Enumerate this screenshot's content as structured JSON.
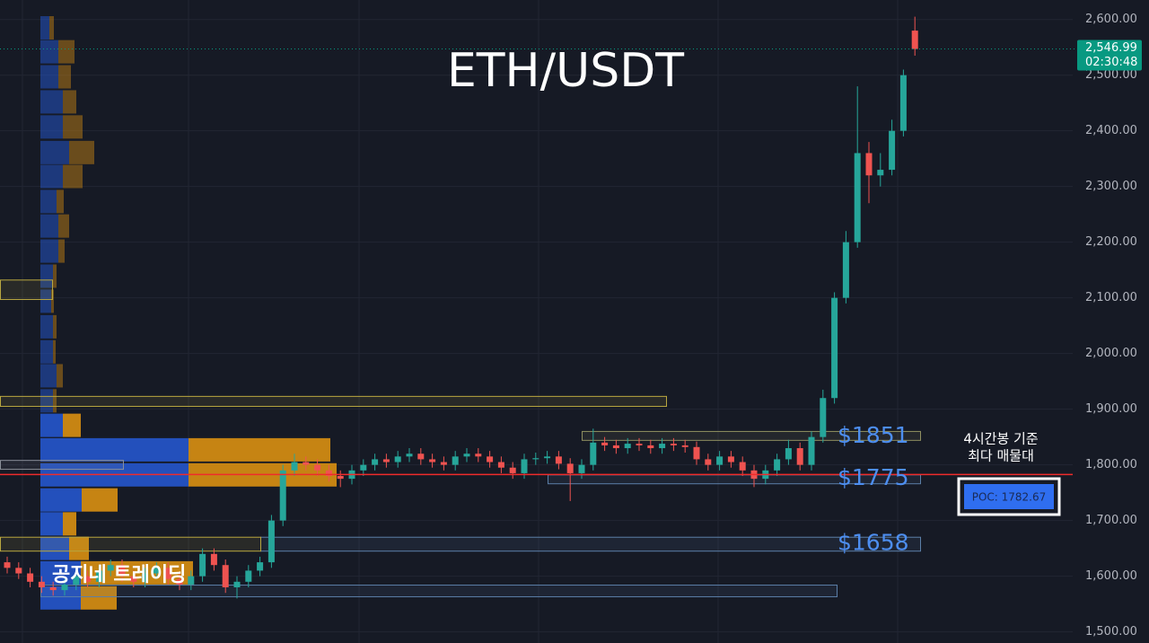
{
  "chart_data": {
    "type": "candlestick",
    "title": "ETH/USDT",
    "watermark": "공지네 트레이딩",
    "up_color": "#26a69a",
    "down_color": "#ef5350",
    "grid": true,
    "ylim": [
      1480,
      2635
    ],
    "yticks": [
      {
        "value": 1500,
        "label": "1,500.00"
      },
      {
        "value": 1600,
        "label": "1,600.00"
      },
      {
        "value": 1700,
        "label": "1,700.00"
      },
      {
        "value": 1800,
        "label": "1,800.00"
      },
      {
        "value": 1900,
        "label": "1,900.00"
      },
      {
        "value": 2000,
        "label": "2,000.00"
      },
      {
        "value": 2100,
        "label": "2,100.00"
      },
      {
        "value": 2200,
        "label": "2,200.00"
      },
      {
        "value": 2300,
        "label": "2,300.00"
      },
      {
        "value": 2400,
        "label": "2,400.00"
      },
      {
        "value": 2500,
        "label": "2,500.00"
      },
      {
        "value": 2600,
        "label": "2,600.00"
      }
    ],
    "open": [
      1625,
      1615,
      1605,
      1590,
      1580,
      1575,
      1585,
      1600,
      1590,
      1610,
      1620,
      1600,
      1590,
      1605,
      1615,
      1595,
      1585,
      1600,
      1640,
      1620,
      1580,
      1590,
      1610,
      1625,
      1700,
      1790,
      1805,
      1800,
      1790,
      1780,
      1775,
      1790,
      1800,
      1810,
      1805,
      1815,
      1820,
      1810,
      1805,
      1800,
      1815,
      1820,
      1815,
      1805,
      1795,
      1785,
      1810,
      1812,
      1815,
      1802,
      1785,
      1800,
      1840,
      1835,
      1830,
      1838,
      1835,
      1830,
      1838,
      1835,
      1832,
      1810,
      1800,
      1815,
      1805,
      1790,
      1775,
      1790,
      1810,
      1830,
      1800,
      1850,
      1920,
      2100,
      2200,
      2360,
      2320,
      2330,
      2400,
      2580
    ],
    "high": [
      1635,
      1625,
      1615,
      1600,
      1590,
      1595,
      1610,
      1610,
      1620,
      1630,
      1630,
      1610,
      1615,
      1625,
      1625,
      1605,
      1610,
      1650,
      1650,
      1630,
      1600,
      1620,
      1635,
      1710,
      1800,
      1820,
      1815,
      1810,
      1800,
      1790,
      1800,
      1810,
      1820,
      1820,
      1825,
      1830,
      1830,
      1820,
      1815,
      1825,
      1830,
      1830,
      1825,
      1815,
      1805,
      1820,
      1822,
      1825,
      1825,
      1812,
      1810,
      1865,
      1850,
      1845,
      1848,
      1848,
      1845,
      1848,
      1848,
      1845,
      1842,
      1820,
      1825,
      1825,
      1815,
      1800,
      1800,
      1820,
      1845,
      1840,
      1860,
      1935,
      2110,
      2220,
      2480,
      2380,
      2360,
      2420,
      2510,
      2605
    ],
    "low": [
      1605,
      1595,
      1580,
      1570,
      1565,
      1565,
      1575,
      1580,
      1580,
      1600,
      1590,
      1580,
      1580,
      1595,
      1585,
      1575,
      1575,
      1590,
      1610,
      1570,
      1560,
      1580,
      1600,
      1615,
      1690,
      1780,
      1790,
      1780,
      1770,
      1760,
      1765,
      1780,
      1790,
      1795,
      1795,
      1805,
      1800,
      1795,
      1790,
      1790,
      1805,
      1805,
      1795,
      1785,
      1775,
      1775,
      1800,
      1802,
      1792,
      1735,
      1775,
      1790,
      1825,
      1820,
      1820,
      1825,
      1820,
      1820,
      1825,
      1822,
      1800,
      1790,
      1790,
      1795,
      1780,
      1760,
      1765,
      1780,
      1800,
      1790,
      1790,
      1840,
      1910,
      2090,
      2190,
      2270,
      2300,
      2320,
      2390,
      2535
    ],
    "close": [
      1615,
      1605,
      1590,
      1580,
      1575,
      1585,
      1600,
      1590,
      1610,
      1620,
      1600,
      1590,
      1605,
      1615,
      1595,
      1585,
      1600,
      1640,
      1620,
      1580,
      1590,
      1610,
      1625,
      1700,
      1790,
      1805,
      1800,
      1790,
      1780,
      1775,
      1790,
      1800,
      1810,
      1805,
      1815,
      1820,
      1810,
      1805,
      1800,
      1815,
      1820,
      1815,
      1805,
      1795,
      1785,
      1810,
      1812,
      1815,
      1802,
      1785,
      1800,
      1840,
      1835,
      1830,
      1838,
      1835,
      1830,
      1838,
      1835,
      1832,
      1810,
      1800,
      1815,
      1805,
      1790,
      1775,
      1790,
      1810,
      1830,
      1800,
      1850,
      1920,
      2100,
      2200,
      2360,
      2320,
      2330,
      2400,
      2500,
      2547
    ],
    "last_price": {
      "value": 2546.99,
      "label": "2,546.99",
      "countdown": "02:30:48",
      "color": "#089981"
    },
    "poc": {
      "value": 1782.67,
      "label": "POC: 1782.67",
      "color": "#ef2b2b",
      "note": [
        "4시간봉 기준",
        "최다 매물대"
      ]
    },
    "levels": [
      {
        "value": 1851,
        "label": "$1851"
      },
      {
        "value": 1775,
        "label": "$1775"
      },
      {
        "value": 1658,
        "label": "$1658"
      }
    ],
    "level_color": "#4d8ef0",
    "zones": [
      {
        "low": 2097,
        "high": 2132,
        "color": "#b8a640"
      },
      {
        "low": 1905,
        "high": 1923,
        "color": "#b8a640"
      },
      {
        "low": 1792,
        "high": 1808,
        "color": "#8a8f99"
      },
      {
        "low": 1844,
        "high": 1860,
        "color": "#8f8f60"
      },
      {
        "low": 1766,
        "high": 1782,
        "color": "#5b7fa8"
      },
      {
        "low": 1645,
        "high": 1670,
        "color": "#5b7fa8"
      },
      {
        "low": 1645,
        "high": 1670,
        "color": "#b8a640"
      },
      {
        "low": 1563,
        "high": 1584,
        "color": "#5b7fa8"
      }
    ],
    "profile": {
      "prices": [
        2585,
        2542,
        2497,
        2452,
        2407,
        2361,
        2318,
        2273,
        2229,
        2184,
        2139,
        2094,
        2048,
        2003,
        1960,
        1915,
        1871,
        1827,
        1782,
        1737,
        1694,
        1650,
        1606,
        1561
      ],
      "buy": [
        10,
        20,
        20,
        25,
        25,
        32,
        25,
        18,
        20,
        20,
        14,
        12,
        14,
        14,
        18,
        14,
        25,
        165,
        165,
        46,
        25,
        32,
        45,
        45
      ],
      "sell": [
        5,
        18,
        14,
        15,
        22,
        28,
        22,
        8,
        12,
        7,
        4,
        3,
        4,
        3,
        7,
        4,
        20,
        158,
        165,
        40,
        15,
        22,
        125,
        40
      ],
      "buy_color": "#2453c4",
      "sell_color": "#d08a12"
    }
  }
}
